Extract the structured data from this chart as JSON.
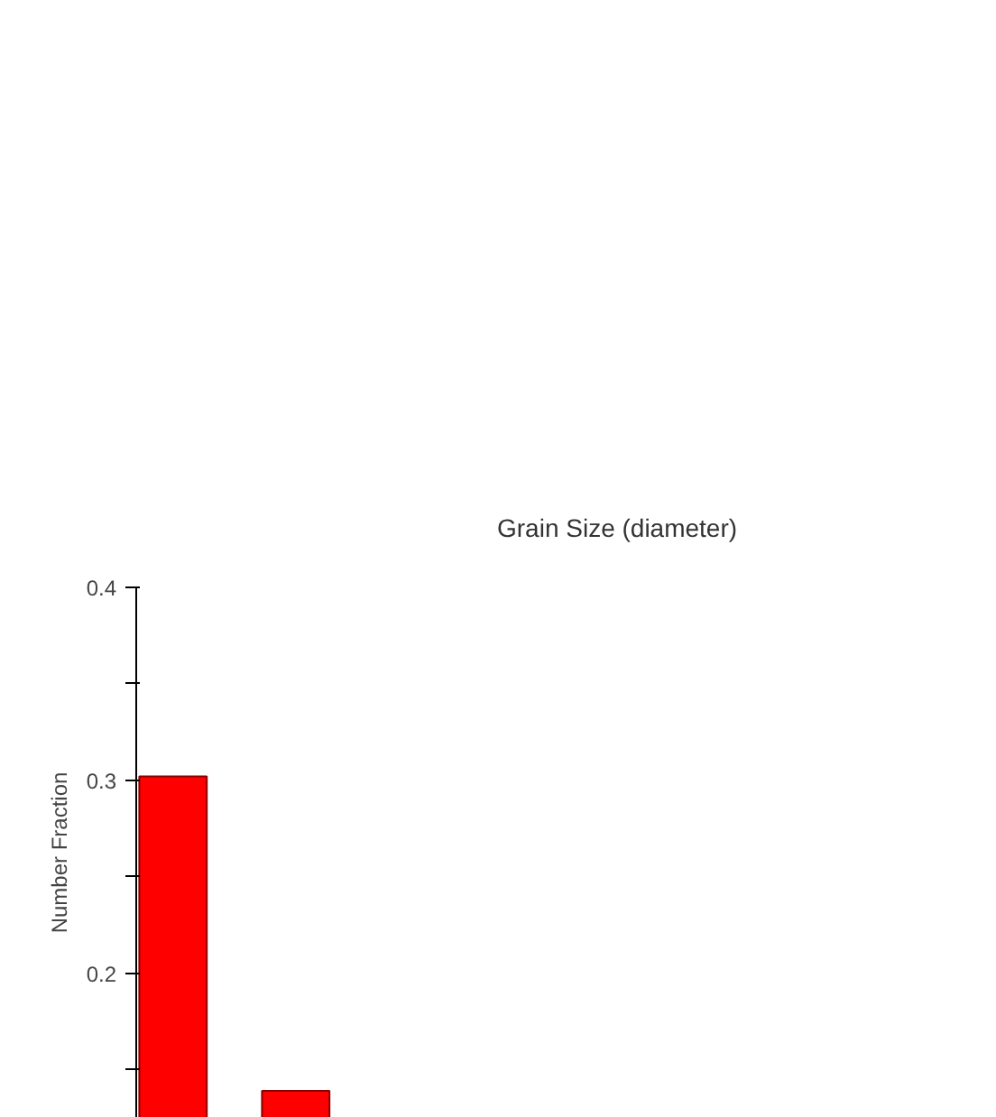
{
  "chart_data": {
    "type": "bar",
    "title": "Grain Size (diameter)",
    "ylabel": "Number Fraction",
    "categories": [
      null,
      null
    ],
    "values": [
      0.302,
      0.139
    ],
    "color": "#ff0000",
    "ylim": [
      0.125,
      0.4
    ],
    "yticks": [
      {
        "value": 0.15,
        "label": null
      },
      0.2,
      {
        "value": 0.25,
        "label": null
      },
      0.3,
      {
        "value": 0.35,
        "label": null
      },
      0.4
    ],
    "tick_labels": "y",
    "grid": false
  }
}
